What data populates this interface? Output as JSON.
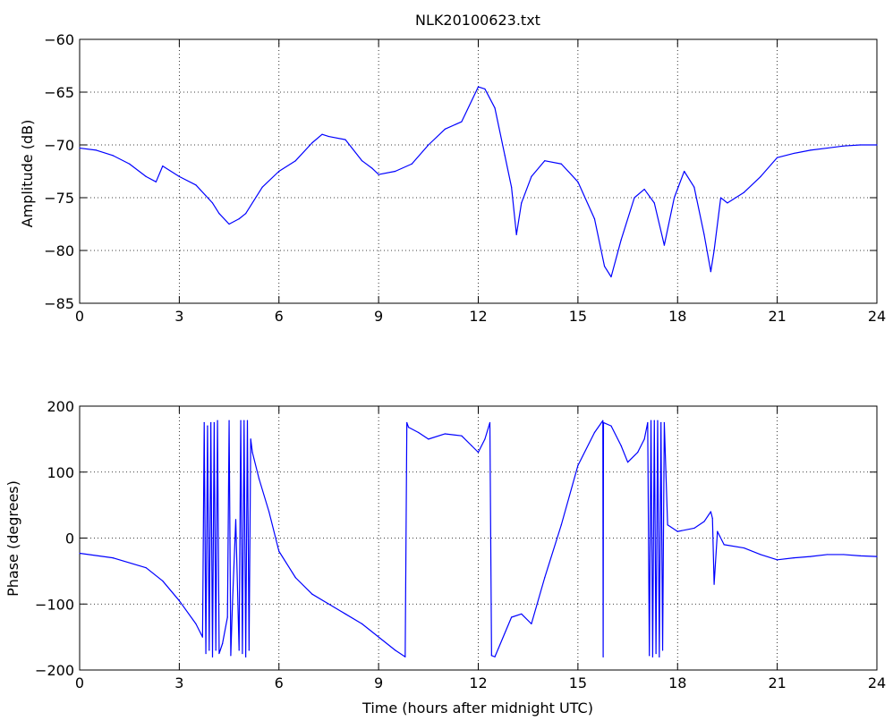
{
  "chart_data": [
    {
      "type": "line",
      "title": "NLK20100623.txt",
      "xlabel": "",
      "ylabel": "Amplitude (dB)",
      "xlim": [
        0,
        24
      ],
      "ylim": [
        -85,
        -60
      ],
      "xticks": [
        0,
        3,
        6,
        9,
        12,
        15,
        18,
        21,
        24
      ],
      "yticks": [
        -85,
        -80,
        -75,
        -70,
        -65,
        -60
      ],
      "grid": true,
      "line_color": "#0000ff",
      "x": [
        0,
        0.5,
        1,
        1.5,
        2,
        2.3,
        2.5,
        3,
        3.5,
        4,
        4.2,
        4.5,
        4.8,
        5,
        5.5,
        6,
        6.5,
        7,
        7.3,
        7.5,
        8,
        8.5,
        8.8,
        9,
        9.5,
        10,
        10.5,
        11,
        11.5,
        12,
        12.2,
        12.5,
        12.8,
        13,
        13.15,
        13.3,
        13.6,
        14,
        14.5,
        15,
        15.5,
        15.8,
        16,
        16.3,
        16.7,
        17,
        17.3,
        17.6,
        17.9,
        18.2,
        18.5,
        18.8,
        19,
        19.1,
        19.3,
        19.5,
        20,
        20.5,
        21,
        21.5,
        22,
        22.5,
        23,
        23.5,
        24
      ],
      "y": [
        -70.3,
        -70.5,
        -71,
        -71.8,
        -73,
        -73.5,
        -72,
        -73,
        -73.8,
        -75.5,
        -76.5,
        -77.5,
        -77,
        -76.5,
        -74,
        -72.5,
        -71.5,
        -69.8,
        -69,
        -69.2,
        -69.5,
        -71.5,
        -72.2,
        -72.8,
        -72.5,
        -71.8,
        -70,
        -68.5,
        -67.8,
        -64.5,
        -64.7,
        -66.5,
        -71,
        -74,
        -78.5,
        -75.5,
        -73,
        -71.5,
        -71.8,
        -73.5,
        -77,
        -81.5,
        -82.5,
        -79,
        -75,
        -74.2,
        -75.5,
        -79.5,
        -75,
        -72.5,
        -74,
        -78.5,
        -82,
        -80,
        -75,
        -75.5,
        -74.5,
        -73,
        -71.2,
        -70.8,
        -70.5,
        -70.3,
        -70.1,
        -70,
        -70
      ]
    },
    {
      "type": "line",
      "title": "",
      "xlabel": "Time (hours after midnight UTC)",
      "ylabel": "Phase (degrees)",
      "xlim": [
        0,
        24
      ],
      "ylim": [
        -200,
        200
      ],
      "xticks": [
        0,
        3,
        6,
        9,
        12,
        15,
        18,
        21,
        24
      ],
      "yticks": [
        -200,
        -100,
        0,
        100,
        200
      ],
      "grid": true,
      "line_color": "#0000ff",
      "x": [
        0,
        1,
        2,
        2.5,
        3,
        3.5,
        3.7,
        3.75,
        3.8,
        3.85,
        3.9,
        3.95,
        4,
        4.05,
        4.1,
        4.15,
        4.2,
        4.3,
        4.45,
        4.5,
        4.55,
        4.6,
        4.7,
        4.8,
        4.85,
        4.9,
        4.95,
        5,
        5.05,
        5.1,
        5.15,
        5.2,
        5.4,
        5.7,
        6,
        6.5,
        7,
        7.5,
        8,
        8.5,
        9,
        9.5,
        9.8,
        9.85,
        9.9,
        10.2,
        10.5,
        11,
        11.5,
        11.8,
        12,
        12.2,
        12.35,
        12.4,
        12.5,
        13,
        13.3,
        13.6,
        14,
        14.5,
        15,
        15.5,
        15.75,
        15.76,
        15.77,
        16,
        16.3,
        16.5,
        16.8,
        17,
        17.1,
        17.15,
        17.2,
        17.25,
        17.3,
        17.35,
        17.4,
        17.45,
        17.5,
        17.55,
        17.6,
        17.7,
        18,
        18.5,
        18.8,
        19,
        19.05,
        19.1,
        19.2,
        19.4,
        20,
        20.5,
        21,
        21.5,
        22,
        22.5,
        23,
        23.5,
        24
      ],
      "y": [
        -23,
        -30,
        -45,
        -65,
        -95,
        -130,
        -150,
        175,
        -175,
        170,
        -170,
        175,
        -180,
        175,
        -170,
        178,
        -175,
        -160,
        -120,
        178,
        -178,
        -100,
        28,
        -170,
        178,
        -175,
        178,
        -180,
        178,
        -170,
        150,
        130,
        90,
        40,
        -20,
        -60,
        -85,
        -100,
        -115,
        -130,
        -150,
        -170,
        -180,
        175,
        168,
        160,
        150,
        158,
        155,
        140,
        130,
        150,
        175,
        -178,
        -180,
        -120,
        -115,
        -130,
        -60,
        20,
        110,
        160,
        178,
        -180,
        175,
        170,
        140,
        115,
        130,
        150,
        175,
        -178,
        178,
        -180,
        178,
        -175,
        178,
        -180,
        175,
        -170,
        175,
        20,
        10,
        15,
        25,
        40,
        30,
        -70,
        10,
        -10,
        -15,
        -25,
        -33,
        -30,
        -28,
        -25,
        -25,
        -27,
        -28
      ]
    }
  ]
}
